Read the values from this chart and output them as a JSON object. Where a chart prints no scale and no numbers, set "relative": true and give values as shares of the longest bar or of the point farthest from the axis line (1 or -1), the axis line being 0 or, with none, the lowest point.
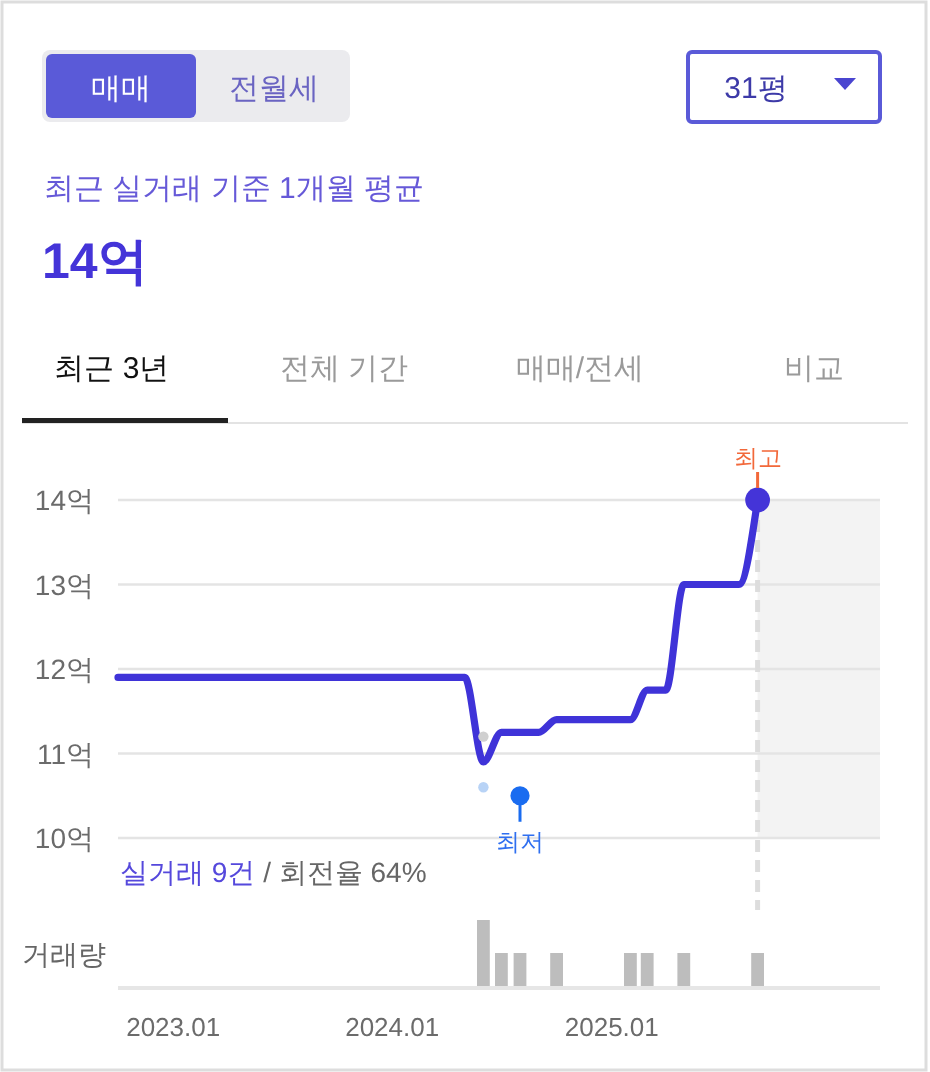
{
  "chart_data": [
    {
      "type": "other",
      "subtitle": "최근 실거래 기준 1개월 평균",
      "title": "14억",
      "annotations": [
        "매매",
        "전월세",
        "31평",
        "최근 3년",
        "전체 기간",
        "매매/전세",
        "비교"
      ]
    },
    {
      "type": "line",
      "xlim": [
        "2022-10-01",
        "2026-03-24"
      ],
      "ylim": [
        10,
        14
      ],
      "yticks": [
        {
          "value": 10,
          "label": "10억"
        },
        {
          "value": 11,
          "label": "11억"
        },
        {
          "value": 12,
          "label": "12억"
        },
        {
          "value": 13,
          "label": "13억"
        },
        {
          "value": 14,
          "label": "14억"
        }
      ],
      "grid": "y",
      "tick_labels": "y",
      "x": [
        "2022-10",
        "2024-05",
        "2024-06",
        "2024-07",
        "2024-08",
        "2024-09",
        "2024-10",
        "2025-02",
        "2025-03",
        "2025-04",
        "2025-05",
        "2025-08",
        "2025-09"
      ],
      "series": [
        {
          "color": "#3f33d8",
          "values": [
            11.9,
            11.9,
            10.9,
            11.25,
            11.25,
            11.25,
            11.4,
            11.4,
            11.75,
            11.75,
            13.0,
            13.0,
            14.0
          ]
        },
        {
          "type": "scatter",
          "x": [
            "2024-06",
            "2024-06"
          ],
          "values": [
            11.2,
            10.6
          ],
          "colors": [
            "#d0d0d0",
            "#b8d3f6"
          ]
        },
        {
          "type": "scatter",
          "x": [
            "2024-08"
          ],
          "values": [
            10.5
          ],
          "color": "#1a6cf0"
        },
        {
          "type": "scatter",
          "x": [
            "2025-09"
          ],
          "values": [
            14.0
          ],
          "color": "#4434d8"
        }
      ],
      "bands": [
        {
          "axis": "x",
          "from": "2025-09",
          "to": "2026-03-24",
          "color": "#f3f3f3"
        }
      ],
      "ref_lines": [
        {
          "axis": "x",
          "value": "2025-09",
          "color": "#dddddd",
          "line_style": "dashed"
        }
      ],
      "annotations": [
        {
          "text": "최고",
          "x": "2025-09",
          "y": 14
        },
        {
          "text": "최저",
          "x": "2024-08",
          "y": 10.5
        },
        "실거래 9건 / 회전율 64%"
      ]
    },
    {
      "type": "bar",
      "relative": true,
      "ylabel": "거래량",
      "color": "#bdbdbd",
      "xlim": [
        "2022-10-01",
        "2026-03-24"
      ],
      "tick_labels": "x",
      "xticks": [
        {
          "value": "2023-01",
          "label": "2023.01"
        },
        {
          "value": "2024-01",
          "label": "2024.01"
        },
        {
          "value": "2025-01",
          "label": "2025.01"
        }
      ],
      "x": [
        "2024-06",
        "2024-07",
        "2024-08",
        "2024-10",
        "2025-02",
        "2025-03",
        "2025-05",
        "2025-09"
      ],
      "values": [
        1,
        0.5,
        0.5,
        0.5,
        0.5,
        0.5,
        0.5,
        0.5
      ]
    }
  ]
}
